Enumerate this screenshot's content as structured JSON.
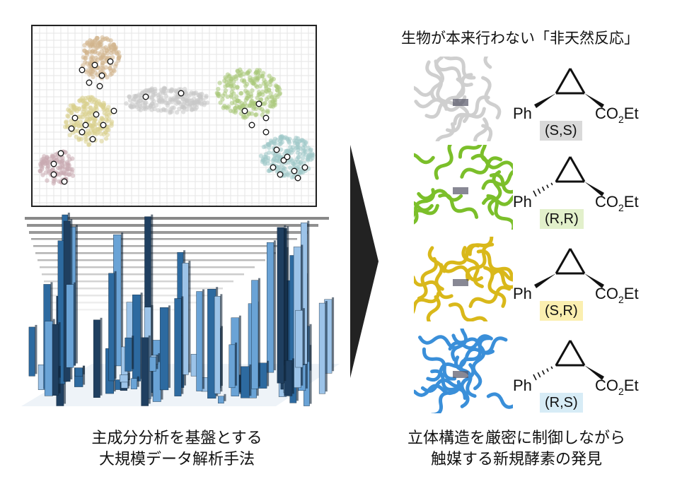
{
  "left_caption": {
    "line1": "主成分分析を基盤とする",
    "line2": "大規模データ解析手法"
  },
  "right_title": "生物が本来行わない「非天然反応」",
  "right_caption": {
    "line1": "立体構造を厳密に制御しながら",
    "line2": "触媒する新規酵素の発見"
  },
  "enzymes": [
    {
      "label": "(S,S)",
      "label_bg": "#d9d9d9",
      "protein_color": "#cfcfcf",
      "ph": "Ph",
      "ester": "CO2Et"
    },
    {
      "label": "(R,R)",
      "label_bg": "#e2f0cb",
      "protein_color": "#7bbf2a",
      "ph": "Ph",
      "ester": "CO2Et"
    },
    {
      "label": "(S,R)",
      "label_bg": "#fbefb0",
      "protein_color": "#d9b81a",
      "ph": "Ph",
      "ester": "CO2Et"
    },
    {
      "label": "(R,S)",
      "label_bg": "#d7ecf6",
      "protein_color": "#3a8fd9",
      "ph": "Ph",
      "ester": "CO2Et"
    }
  ],
  "scatter_clusters": [
    {
      "name": "brown",
      "color": "#d2b48c"
    },
    {
      "name": "khaki",
      "color": "#d8d08c"
    },
    {
      "name": "gray",
      "color": "#c8c8c8"
    },
    {
      "name": "green",
      "color": "#a9c97a"
    },
    {
      "name": "teal",
      "color": "#9ec8c8"
    },
    {
      "name": "mauve",
      "color": "#c9a9b0"
    }
  ],
  "arrow_color": "#222222"
}
